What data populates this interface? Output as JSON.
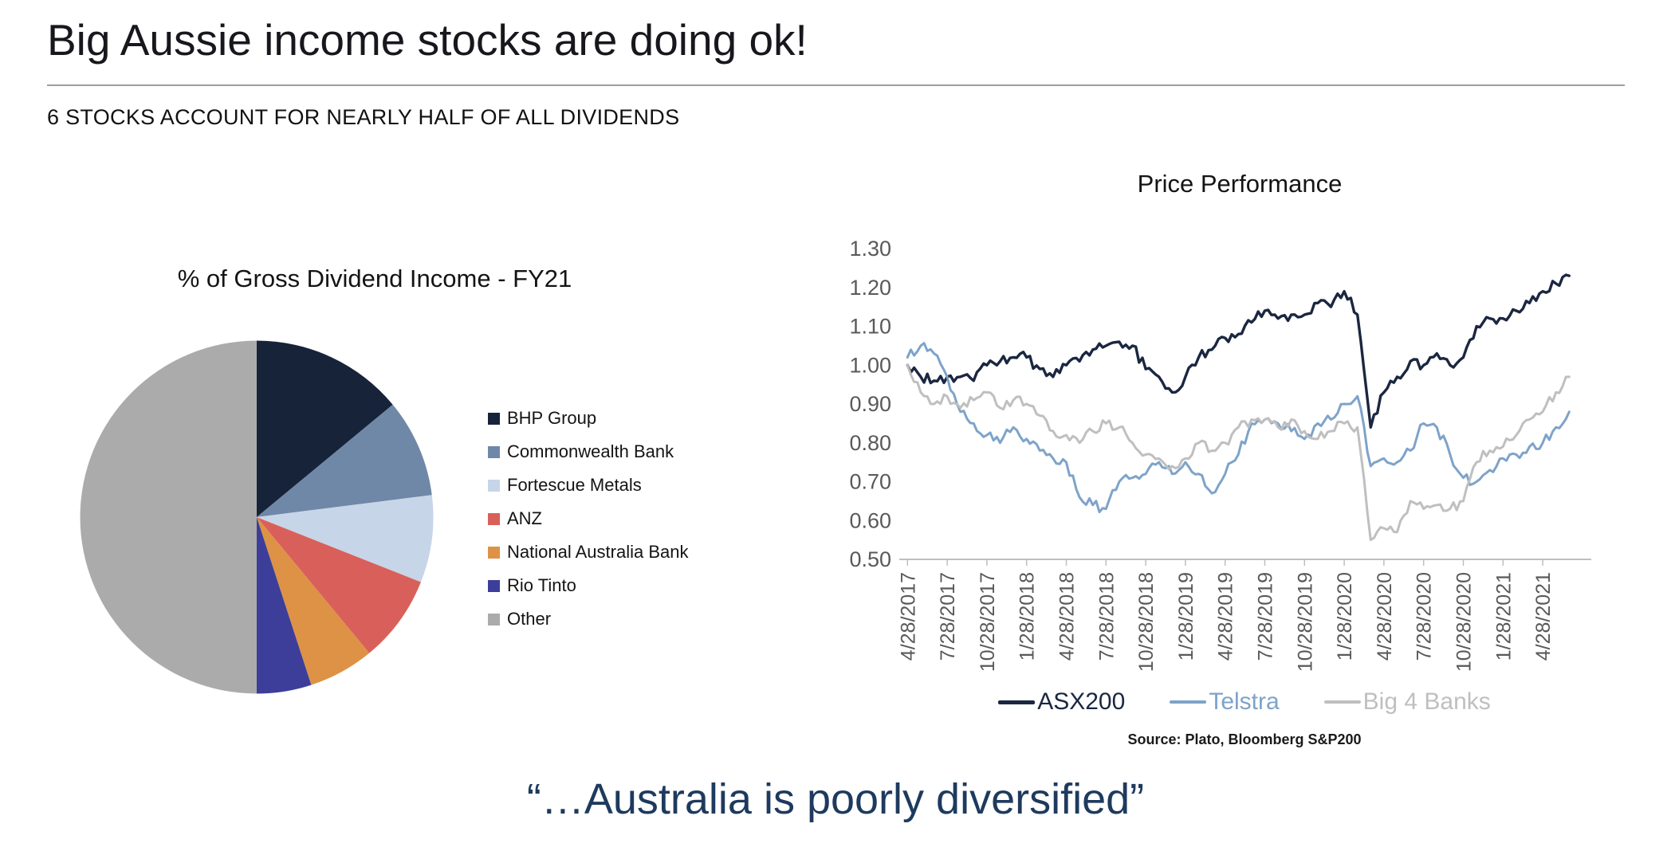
{
  "slide": {
    "title": "Big Aussie income stocks are doing ok!",
    "subtitle": "6 STOCKS ACCOUNT FOR NEARLY HALF OF ALL DIVIDENDS",
    "quote": "“…Australia is poorly diversified”"
  },
  "chart_data": [
    {
      "type": "pie",
      "title": "% of Gross Dividend Income - FY21",
      "labels": [
        "BHP Group",
        "Commonwealth Bank",
        "Fortescue Metals",
        "ANZ",
        "National Australia Bank",
        "Rio Tinto",
        "Other"
      ],
      "values": [
        14,
        9,
        8,
        8,
        6,
        5,
        50
      ],
      "colors": [
        "#172339",
        "#6f88a8",
        "#c7d5e8",
        "#d9605a",
        "#dd9246",
        "#3c3e99",
        "#ababab"
      ],
      "start_angle_deg": -90,
      "direction": "clockwise",
      "legend_position": "right"
    },
    {
      "type": "line",
      "title": "Price Performance",
      "source": "Source: Plato, Bloomberg S&P200",
      "ylim": [
        0.5,
        1.3
      ],
      "grid": false,
      "legend_position": "bottom",
      "x_interval": "monthly, starting 4/28/2017 (t = months since start)",
      "yticks": [
        {
          "value": 0.5,
          "label": "0.50"
        },
        {
          "value": 0.6,
          "label": "0.60"
        },
        {
          "value": 0.7,
          "label": "0.70"
        },
        {
          "value": 0.8,
          "label": "0.80"
        },
        {
          "value": 0.9,
          "label": "0.90"
        },
        {
          "value": 1.0,
          "label": "1.00"
        },
        {
          "value": 1.1,
          "label": "1.10"
        },
        {
          "value": 1.2,
          "label": "1.20"
        },
        {
          "value": 1.3,
          "label": "1.30"
        }
      ],
      "xticks": [
        {
          "t": 0,
          "label": "4/28/2017"
        },
        {
          "t": 3,
          "label": "7/28/2017"
        },
        {
          "t": 6,
          "label": "10/28/2017"
        },
        {
          "t": 9,
          "label": "1/28/2018"
        },
        {
          "t": 12,
          "label": "4/28/2018"
        },
        {
          "t": 15,
          "label": "7/28/2018"
        },
        {
          "t": 18,
          "label": "10/28/2018"
        },
        {
          "t": 21,
          "label": "1/28/2019"
        },
        {
          "t": 24,
          "label": "4/28/2019"
        },
        {
          "t": 27,
          "label": "7/28/2019"
        },
        {
          "t": 30,
          "label": "10/28/2019"
        },
        {
          "t": 33,
          "label": "1/28/2020"
        },
        {
          "t": 36,
          "label": "4/28/2020"
        },
        {
          "t": 39,
          "label": "7/28/2020"
        },
        {
          "t": 42,
          "label": "10/28/2020"
        },
        {
          "t": 45,
          "label": "1/28/2021"
        },
        {
          "t": 48,
          "label": "4/28/2021"
        }
      ],
      "series": [
        {
          "name": "ASX200",
          "color": "#1b2740",
          "values": [
            1.0,
            0.97,
            0.96,
            0.97,
            0.97,
            0.96,
            1.0,
            1.01,
            1.02,
            1.02,
            0.99,
            0.97,
            1.0,
            1.01,
            1.04,
            1.05,
            1.06,
            1.05,
            0.99,
            0.97,
            0.93,
            0.97,
            1.02,
            1.04,
            1.07,
            1.08,
            1.11,
            1.14,
            1.12,
            1.13,
            1.13,
            1.16,
            1.15,
            1.19,
            1.13,
            0.84,
            0.93,
            0.97,
            1.01,
            1.0,
            1.03,
            1.0,
            1.02,
            1.1,
            1.12,
            1.12,
            1.14,
            1.16,
            1.19,
            1.21,
            1.23
          ]
        },
        {
          "name": "Telstra",
          "color": "#7ea3c9",
          "values": [
            1.02,
            1.05,
            1.03,
            0.97,
            0.88,
            0.85,
            0.82,
            0.8,
            0.84,
            0.81,
            0.78,
            0.76,
            0.75,
            0.66,
            0.64,
            0.63,
            0.7,
            0.71,
            0.72,
            0.75,
            0.72,
            0.75,
            0.72,
            0.67,
            0.72,
            0.77,
            0.85,
            0.86,
            0.85,
            0.83,
            0.81,
            0.85,
            0.86,
            0.9,
            0.92,
            0.74,
            0.76,
            0.75,
            0.78,
            0.85,
            0.84,
            0.77,
            0.71,
            0.7,
            0.73,
            0.76,
            0.77,
            0.79,
            0.8,
            0.84,
            0.88
          ]
        },
        {
          "name": "Big 4 Banks",
          "color": "#bfbfbf",
          "values": [
            1.0,
            0.93,
            0.9,
            0.92,
            0.89,
            0.91,
            0.93,
            0.89,
            0.91,
            0.9,
            0.87,
            0.83,
            0.82,
            0.8,
            0.83,
            0.85,
            0.84,
            0.8,
            0.77,
            0.76,
            0.74,
            0.76,
            0.8,
            0.78,
            0.8,
            0.84,
            0.86,
            0.86,
            0.84,
            0.86,
            0.83,
            0.81,
            0.83,
            0.85,
            0.84,
            0.55,
            0.58,
            0.57,
            0.65,
            0.63,
            0.64,
            0.63,
            0.65,
            0.75,
            0.78,
            0.79,
            0.82,
            0.86,
            0.88,
            0.93,
            0.97
          ]
        }
      ]
    }
  ]
}
